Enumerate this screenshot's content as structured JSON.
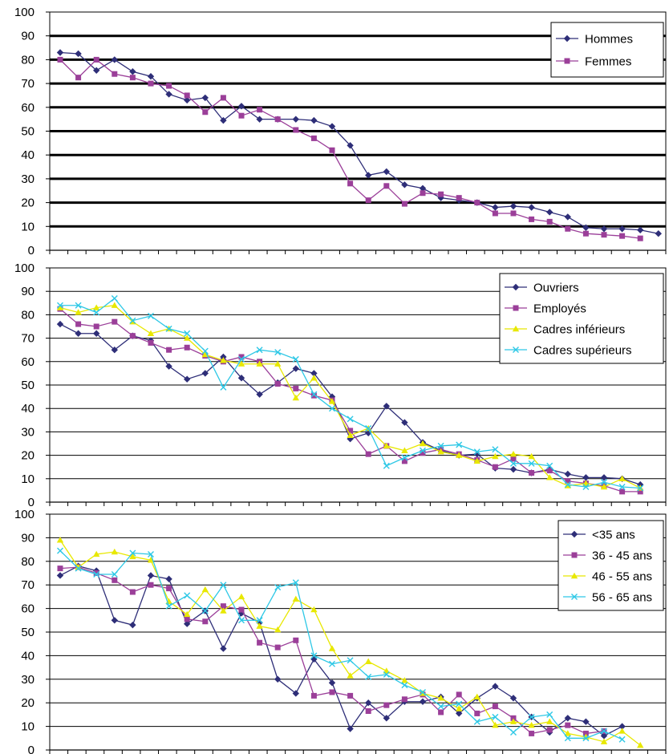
{
  "chart_data": [
    {
      "type": "line",
      "ylim": [
        0,
        100
      ],
      "yticks": [
        0,
        10,
        20,
        30,
        40,
        50,
        60,
        70,
        80,
        90,
        100
      ],
      "grid": "heavy",
      "legend_position": "top-right",
      "series": [
        {
          "name": "Hommes",
          "color": "#2e2e78",
          "marker": "diamond",
          "values": [
            83,
            82.5,
            75.5,
            80,
            75,
            73,
            65.5,
            63,
            64,
            54.5,
            60.5,
            55,
            55,
            55,
            54.5,
            52,
            44,
            31.5,
            33,
            27.5,
            26,
            22,
            21,
            20,
            18,
            18.5,
            18,
            16,
            14,
            9.5,
            9,
            9,
            8.5,
            7
          ]
        },
        {
          "name": "Femmes",
          "color": "#9b3f99",
          "marker": "square",
          "values": [
            80,
            72.5,
            80,
            74,
            72.5,
            70,
            69,
            65,
            58,
            64,
            56.5,
            59,
            55,
            50.5,
            47,
            42,
            28,
            21,
            27,
            19.5,
            24,
            23.5,
            22,
            20,
            15.5,
            15.5,
            13,
            12,
            9,
            7,
            6.5,
            6,
            5
          ]
        }
      ]
    },
    {
      "type": "line",
      "ylim": [
        0,
        100
      ],
      "yticks": [
        0,
        10,
        20,
        30,
        40,
        50,
        60,
        70,
        80,
        90,
        100
      ],
      "grid": "thin",
      "legend_position": "top-right",
      "series": [
        {
          "name": "Ouvriers",
          "color": "#2e2e78",
          "marker": "diamond",
          "values": [
            76,
            72,
            72,
            65,
            71,
            69,
            58,
            52.5,
            55,
            62,
            53,
            46,
            51,
            57,
            55,
            45,
            27,
            29.5,
            41,
            34,
            25.5,
            22,
            20,
            20.5,
            14.5,
            14,
            12.5,
            14,
            12,
            10.5,
            10.5,
            10,
            7.5
          ]
        },
        {
          "name": "Employés",
          "color": "#9b3f99",
          "marker": "square",
          "values": [
            82.5,
            76,
            75,
            77,
            71,
            68,
            65,
            66,
            62.5,
            60,
            62,
            60,
            50.5,
            48.5,
            45.5,
            43.5,
            30.5,
            20.5,
            24,
            17.5,
            21,
            22.5,
            20.5,
            18,
            15,
            18.5,
            12.5,
            13.5,
            9,
            8,
            7,
            4.5,
            4.5
          ]
        },
        {
          "name": "Cadres inférieurs",
          "color": "#e8e800",
          "marker": "triangle",
          "values": [
            83,
            81,
            83,
            84,
            77,
            72,
            74,
            70,
            63,
            60.5,
            59,
            59,
            59,
            44.5,
            53,
            43,
            28.5,
            31.5,
            24,
            22,
            25,
            21.5,
            20,
            17.5,
            19.5,
            20.5,
            19.5,
            10.5,
            7,
            8,
            6.5,
            10,
            6
          ]
        },
        {
          "name": "Cadres supérieurs",
          "color": "#2ec8e6",
          "marker": "x",
          "values": [
            84,
            84,
            81,
            87,
            77.5,
            79.5,
            74,
            72,
            64.5,
            49,
            61,
            65,
            64,
            61,
            46,
            40,
            35.5,
            31.5,
            15.5,
            19,
            22,
            24,
            24.5,
            21.5,
            22.5,
            16.5,
            16.5,
            15.5,
            7.5,
            6.5,
            8.5,
            6.5,
            6
          ]
        }
      ]
    },
    {
      "type": "line",
      "ylim": [
        0,
        100
      ],
      "yticks": [
        0,
        10,
        20,
        30,
        40,
        50,
        60,
        70,
        80,
        90,
        100
      ],
      "grid": "thin",
      "legend_position": "top-right",
      "series": [
        {
          "name": "<35 ans",
          "color": "#2e2e78",
          "marker": "diamond",
          "values": [
            74,
            78,
            76,
            55,
            53,
            74,
            72.5,
            53.5,
            59,
            43,
            58,
            54,
            30,
            24,
            38.5,
            28.5,
            9,
            20,
            13.5,
            20.5,
            20.5,
            22.5,
            15.5,
            22,
            27,
            22,
            14,
            7.5,
            13.5,
            12,
            6,
            10
          ]
        },
        {
          "name": "36 - 45 ans",
          "color": "#9b3f99",
          "marker": "square",
          "values": [
            77,
            77.5,
            75,
            72,
            67,
            70,
            68.5,
            55.5,
            54.5,
            61,
            59.5,
            45.5,
            43.5,
            46.5,
            23,
            24.5,
            23,
            16.5,
            19,
            21.5,
            23.5,
            16,
            23.5,
            15.5,
            18.5,
            13.5,
            7,
            8.5,
            10.5,
            7,
            8
          ]
        },
        {
          "name": "46 - 55 ans",
          "color": "#e8e800",
          "marker": "triangle",
          "values": [
            89,
            77.5,
            83,
            84,
            82,
            80.5,
            63,
            57.5,
            68,
            59,
            65,
            52.5,
            51,
            64,
            59.5,
            43,
            31.5,
            37.5,
            33.5,
            29.5,
            24,
            22,
            17.5,
            22.5,
            10.5,
            12,
            10.5,
            12,
            7,
            5.5,
            3.5,
            8,
            2
          ]
        },
        {
          "name": "56 - 65 ans",
          "color": "#2ec8e6",
          "marker": "x",
          "values": [
            84.5,
            77,
            74.5,
            74.5,
            83.5,
            83,
            61,
            65.5,
            59,
            70,
            55,
            55,
            69,
            71,
            40,
            36.5,
            38,
            31,
            32,
            27.5,
            24.5,
            18.5,
            19.5,
            12,
            14,
            7.5,
            14,
            15,
            5,
            5,
            8,
            4.5
          ]
        }
      ]
    }
  ]
}
